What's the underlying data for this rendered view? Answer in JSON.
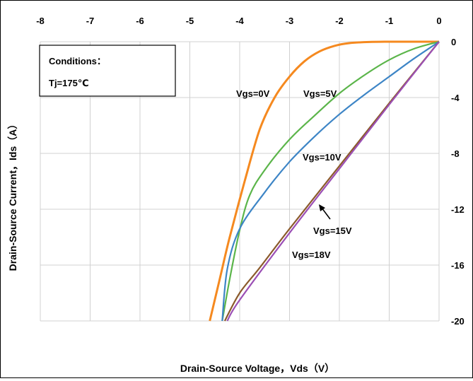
{
  "chart_data": {
    "type": "line",
    "title": "",
    "xlabel": "Drain-Source Voltage，Vds（V）",
    "ylabel": "Drain-Source Current，Ids（A）",
    "xlim": [
      -8,
      0
    ],
    "ylim": [
      -20,
      0
    ],
    "x_ticks": [
      "-8",
      "-7",
      "-6",
      "-5",
      "-4",
      "-3",
      "-2",
      "-1",
      "0"
    ],
    "y_ticks": [
      "0",
      "-4",
      "-8",
      "-12",
      "-16",
      "-20"
    ],
    "grid": true,
    "conditions": {
      "title": "Conditions：",
      "value": "Tj=175℃"
    },
    "series": [
      {
        "name": "Vgs=0V",
        "color": "#F5891F",
        "points": [
          [
            0,
            0
          ],
          [
            -0.5,
            0
          ],
          [
            -1.0,
            0
          ],
          [
            -1.4,
            -0.02
          ],
          [
            -1.8,
            -0.1
          ],
          [
            -2.1,
            -0.3
          ],
          [
            -2.4,
            -0.7
          ],
          [
            -2.7,
            -1.4
          ],
          [
            -3.0,
            -2.5
          ],
          [
            -3.3,
            -4.0
          ],
          [
            -3.6,
            -6.3
          ],
          [
            -3.9,
            -10.0
          ],
          [
            -4.2,
            -14.0
          ],
          [
            -4.4,
            -17.0
          ],
          [
            -4.6,
            -20.0
          ]
        ]
      },
      {
        "name": "Vgs=5V",
        "color": "#5BB54A",
        "points": [
          [
            0,
            0
          ],
          [
            -0.5,
            -0.5
          ],
          [
            -1.0,
            -1.3
          ],
          [
            -1.5,
            -2.4
          ],
          [
            -2.0,
            -3.7
          ],
          [
            -2.5,
            -5.3
          ],
          [
            -3.0,
            -7.0
          ],
          [
            -3.5,
            -9.2
          ],
          [
            -3.8,
            -11.0
          ],
          [
            -4.0,
            -13.5
          ],
          [
            -4.2,
            -17.0
          ],
          [
            -4.35,
            -20.0
          ]
        ]
      },
      {
        "name": "Vgs=10V",
        "color": "#3D85C6",
        "points": [
          [
            0,
            0
          ],
          [
            -0.5,
            -1.2
          ],
          [
            -1.0,
            -2.5
          ],
          [
            -1.5,
            -3.8
          ],
          [
            -2.0,
            -5.2
          ],
          [
            -2.5,
            -6.8
          ],
          [
            -3.0,
            -8.6
          ],
          [
            -3.5,
            -10.8
          ],
          [
            -4.0,
            -13.4
          ],
          [
            -4.25,
            -16.3
          ],
          [
            -4.35,
            -20.0
          ]
        ]
      },
      {
        "name": "Vgs=15V",
        "color": "#8B5A2B",
        "points": [
          [
            0,
            0
          ],
          [
            -1.0,
            -4.4
          ],
          [
            -2.0,
            -8.9
          ],
          [
            -3.0,
            -13.4
          ],
          [
            -3.6,
            -16.2
          ],
          [
            -4.0,
            -18.0
          ],
          [
            -4.3,
            -20.0
          ]
        ]
      },
      {
        "name": "Vgs=18V",
        "color": "#9B4FB5",
        "points": [
          [
            0,
            0
          ],
          [
            -1.0,
            -4.5
          ],
          [
            -2.0,
            -9.1
          ],
          [
            -3.0,
            -13.7
          ],
          [
            -4.0,
            -18.5
          ],
          [
            -4.25,
            -20.0
          ]
        ]
      }
    ],
    "annotations": [
      {
        "text": "Vgs=0V",
        "series": "Vgs=0V"
      },
      {
        "text": "Vgs=5V",
        "series": "Vgs=5V"
      },
      {
        "text": "Vgs=10V",
        "series": "Vgs=10V"
      },
      {
        "text": "Vgs=15V",
        "series": "Vgs=15V"
      },
      {
        "text": "Vgs=18V",
        "series": "Vgs=18V"
      }
    ]
  }
}
